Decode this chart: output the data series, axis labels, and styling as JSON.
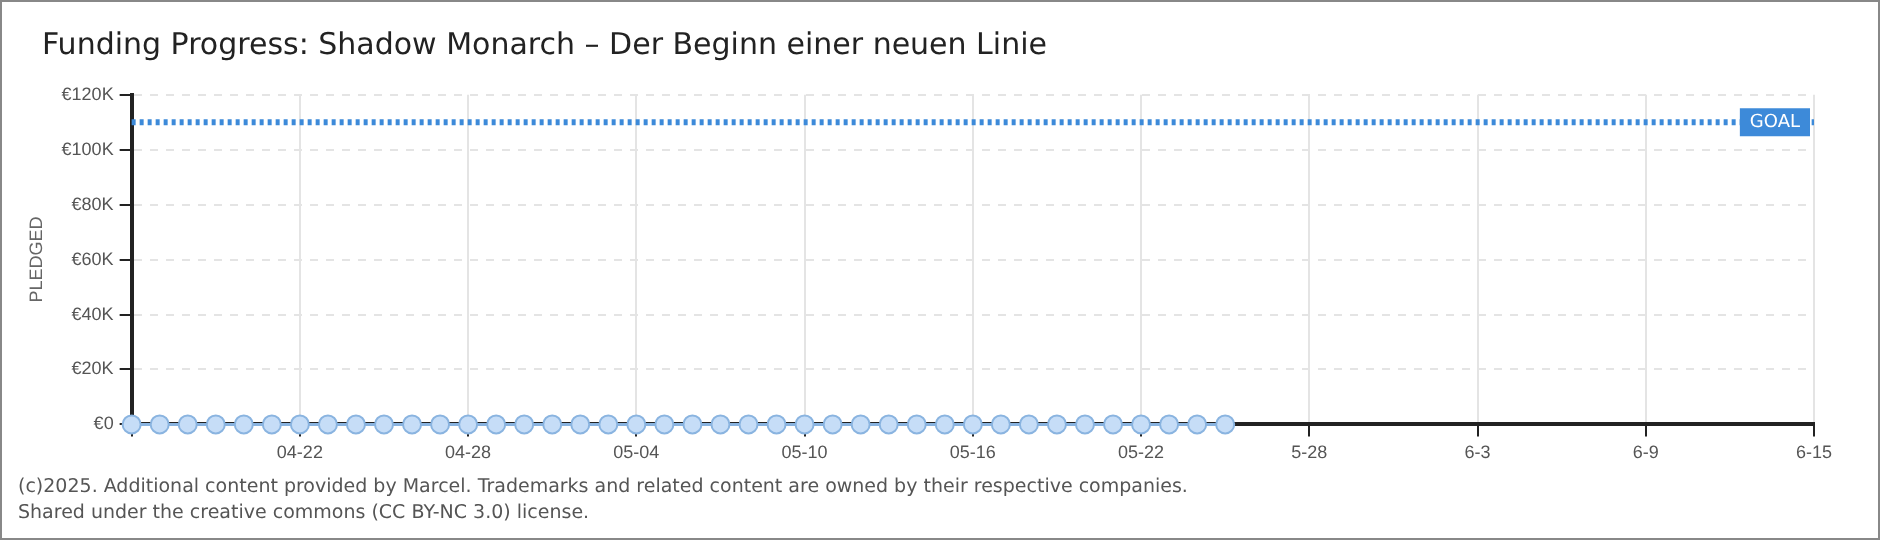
{
  "chart_data": {
    "type": "line",
    "title": "Funding Progress: Shadow Monarch – Der Beginn einer neuen Linie",
    "ylabel": "PLEDGED",
    "x": [
      "2025-04-16",
      "2025-04-17",
      "2025-04-18",
      "2025-04-19",
      "2025-04-20",
      "2025-04-21",
      "2025-04-22",
      "2025-04-23",
      "2025-04-24",
      "2025-04-25",
      "2025-04-26",
      "2025-04-27",
      "2025-04-28",
      "2025-04-29",
      "2025-04-30",
      "2025-05-01",
      "2025-05-02",
      "2025-05-03",
      "2025-05-04",
      "2025-05-05",
      "2025-05-06",
      "2025-05-07",
      "2025-05-08",
      "2025-05-09",
      "2025-05-10",
      "2025-05-11",
      "2025-05-12",
      "2025-05-13",
      "2025-05-14",
      "2025-05-15",
      "2025-05-16",
      "2025-05-17",
      "2025-05-18",
      "2025-05-19",
      "2025-05-20",
      "2025-05-21",
      "2025-05-22",
      "2025-05-23",
      "2025-05-24",
      "2025-05-25"
    ],
    "series": [
      {
        "color": "#8ab4e0",
        "values": [
          0,
          0,
          0,
          0,
          0,
          0,
          0,
          0,
          0,
          0,
          0,
          0,
          0,
          0,
          0,
          0,
          0,
          0,
          0,
          0,
          0,
          0,
          0,
          0,
          0,
          0,
          0,
          0,
          0,
          0,
          0,
          0,
          0,
          0,
          0,
          0,
          0,
          0,
          0,
          0
        ]
      }
    ],
    "xlim": [
      "2025-04-16",
      "2025-06-15"
    ],
    "xticks": [
      {
        "value": "2025-04-16",
        "label": null
      },
      {
        "value": "2025-04-22",
        "label": "04-22"
      },
      {
        "value": "2025-04-28",
        "label": "04-28"
      },
      {
        "value": "2025-05-04",
        "label": "05-04"
      },
      {
        "value": "2025-05-10",
        "label": "05-10"
      },
      {
        "value": "2025-05-16",
        "label": "05-16"
      },
      {
        "value": "2025-05-22",
        "label": "05-22"
      },
      {
        "value": "2025-05-28",
        "label": "5-28"
      },
      {
        "value": "2025-06-03",
        "label": "6-3"
      },
      {
        "value": "2025-06-09",
        "label": "6-9"
      },
      {
        "value": "2025-06-15",
        "label": "6-15"
      }
    ],
    "ylim": [
      0,
      120000
    ],
    "yticks": [
      {
        "value": 0,
        "label": "€0"
      },
      {
        "value": 20000,
        "label": "€20K"
      },
      {
        "value": 40000,
        "label": "€40K"
      },
      {
        "value": 60000,
        "label": "€60K"
      },
      {
        "value": 80000,
        "label": "€80K"
      },
      {
        "value": 100000,
        "label": "€100K"
      },
      {
        "value": 120000,
        "label": "€120K"
      }
    ],
    "ref_lines": [
      {
        "axis": "y",
        "value": 110000,
        "label": "GOAL",
        "color": "#3d8ad9",
        "line_style": "dotted"
      }
    ],
    "grid": true,
    "legend": false,
    "marker": "circle",
    "line_style": "solid",
    "annotations": [
      "(c)2025. Additional content provided by Marcel. Trademarks and related content are owned by their respective companies.",
      "Shared under the creative commons (CC BY-NC 3.0) license."
    ]
  }
}
